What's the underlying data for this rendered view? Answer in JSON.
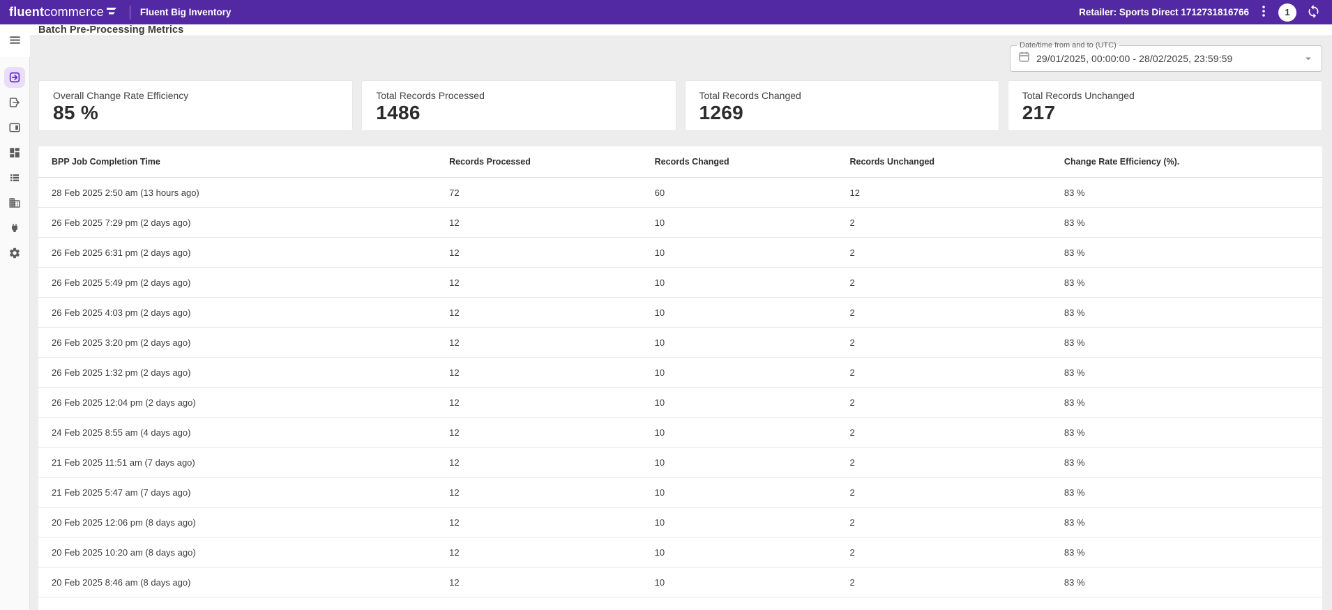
{
  "topbar": {
    "logo_primary": "fluent",
    "logo_secondary": "commerce",
    "app_name": "Fluent Big Inventory",
    "retailer_label": "Retailer: Sports Direct 1712731816766",
    "notification_count": "1",
    "icons": [
      "kebab-menu-icon",
      "sync-icon"
    ]
  },
  "colors": {
    "brand_purple": "#5329A3",
    "active_icon_purple": "#5E2BD0",
    "active_icon_background": "#E9DDF9",
    "page_background": "#EDEDEE"
  },
  "sidebar": {
    "icons": [
      "menu-icon",
      "batch-inbound-icon",
      "batch-outbound-icon",
      "web-asset-icon",
      "dashboard-icon",
      "list-icon",
      "building-icon",
      "plug-icon",
      "gear-icon"
    ],
    "active_item": "batch-inbound"
  },
  "header": {
    "title": "Batch Pre-Processing Metrics"
  },
  "filters": {
    "date_label": "Date/time from and to (UTC)",
    "date_value": "29/01/2025, 00:00:00 - 28/02/2025, 23:59:59"
  },
  "cards": [
    {
      "label": "Overall Change Rate Efficiency",
      "value": "85 %"
    },
    {
      "label": "Total Records Processed",
      "value": "1486"
    },
    {
      "label": "Total Records Changed",
      "value": "1269"
    },
    {
      "label": "Total Records Unchanged",
      "value": "217"
    }
  ],
  "table": {
    "columns": [
      "BPP Job Completion Time",
      "Records Processed",
      "Records Changed",
      "Records Unchanged",
      "Change Rate Efficiency (%)."
    ],
    "rows": [
      [
        "28 Feb 2025 2:50 am (13 hours ago)",
        "72",
        "60",
        "12",
        "83 %"
      ],
      [
        "26 Feb 2025 7:29 pm (2 days ago)",
        "12",
        "10",
        "2",
        "83 %"
      ],
      [
        "26 Feb 2025 6:31 pm (2 days ago)",
        "12",
        "10",
        "2",
        "83 %"
      ],
      [
        "26 Feb 2025 5:49 pm (2 days ago)",
        "12",
        "10",
        "2",
        "83 %"
      ],
      [
        "26 Feb 2025 4:03 pm (2 days ago)",
        "12",
        "10",
        "2",
        "83 %"
      ],
      [
        "26 Feb 2025 3:20 pm (2 days ago)",
        "12",
        "10",
        "2",
        "83 %"
      ],
      [
        "26 Feb 2025 1:32 pm (2 days ago)",
        "12",
        "10",
        "2",
        "83 %"
      ],
      [
        "26 Feb 2025 12:04 pm (2 days ago)",
        "12",
        "10",
        "2",
        "83 %"
      ],
      [
        "24 Feb 2025 8:55 am (4 days ago)",
        "12",
        "10",
        "2",
        "83 %"
      ],
      [
        "21 Feb 2025 11:51 am (7 days ago)",
        "12",
        "10",
        "2",
        "83 %"
      ],
      [
        "21 Feb 2025 5:47 am (7 days ago)",
        "12",
        "10",
        "2",
        "83 %"
      ],
      [
        "20 Feb 2025 12:06 pm (8 days ago)",
        "12",
        "10",
        "2",
        "83 %"
      ],
      [
        "20 Feb 2025 10:20 am (8 days ago)",
        "12",
        "10",
        "2",
        "83 %"
      ],
      [
        "20 Feb 2025 8:46 am (8 days ago)",
        "12",
        "10",
        "2",
        "83 %"
      ]
    ]
  }
}
